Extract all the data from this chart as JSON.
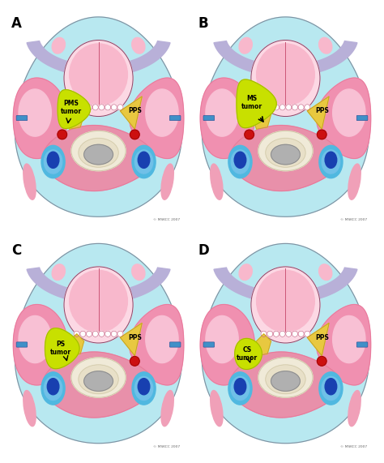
{
  "panels": [
    "A",
    "B",
    "C",
    "D"
  ],
  "tumor_labels": {
    "A": "PMS\ntumor",
    "B": "MS\ntumor",
    "C": "PS\ntumor",
    "D": "CS\ntumor"
  },
  "pps_label": "PPS",
  "copyright": "© MSKCC 2007",
  "bg_color": "#ffffff",
  "light_blue_bg": "#b8e8f0",
  "pink_tongue": "#f8b8cc",
  "pink_tongue_light": "#fcd8e4",
  "pink_parotid": "#f090b0",
  "pink_parotid_light": "#f8c0d4",
  "pink_muscle": "#e8789a",
  "pink_brain": "#e890aa",
  "lavender": "#b8b0d8",
  "lavender_light": "#d0c8e8",
  "yellow_tumor": "#c8e000",
  "yellow_tumor_dark": "#a0b800",
  "yellow_pps": "#e8c840",
  "yellow_pps_dark": "#c0a020",
  "gray_vert": "#b0b0b0",
  "gray_vert_dark": "#888888",
  "cream": "#f0ead8",
  "cream_dark": "#d0c8a8",
  "red_artery": "#cc1010",
  "blue_vein_outer": "#70c0e8",
  "blue_vein_inner": "#1840b0",
  "cyan_vein": "#50b8e0",
  "border_dark": "#884466",
  "pink_styloid": "#f0a0b8",
  "white": "#ffffff",
  "small_blue": "#4090c8"
}
